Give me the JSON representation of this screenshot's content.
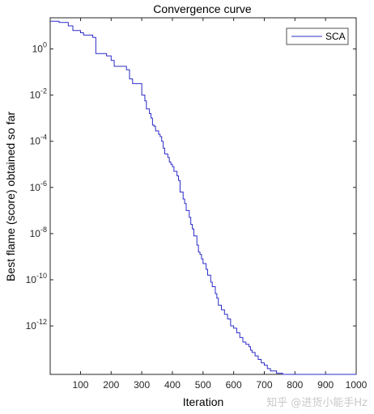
{
  "chart_data": {
    "type": "line",
    "title": "Convergence curve",
    "xlabel": "Iteration",
    "ylabel": "Best flame (score) obtained so far",
    "xlim": [
      1,
      1000
    ],
    "ylim_log10": [
      -14.1,
      1.35
    ],
    "yscale": "log",
    "xticks": [
      100,
      200,
      300,
      400,
      500,
      600,
      700,
      800,
      900,
      1000
    ],
    "yticks_exp": [
      0,
      -2,
      -4,
      -6,
      -8,
      -10,
      -12
    ],
    "legend": {
      "entries": [
        "SCA"
      ],
      "location": "top-right"
    },
    "grid": false,
    "series": [
      {
        "name": "SCA",
        "color": "#2b2bc8",
        "x": [
          1,
          30,
          60,
          75,
          100,
          110,
          140,
          150,
          185,
          200,
          210,
          250,
          260,
          270,
          300,
          310,
          315,
          325,
          330,
          335,
          340,
          345,
          355,
          360,
          365,
          370,
          375,
          385,
          390,
          395,
          400,
          405,
          415,
          420,
          425,
          435,
          440,
          445,
          455,
          460,
          465,
          470,
          480,
          485,
          490,
          495,
          500,
          510,
          515,
          525,
          530,
          540,
          545,
          550,
          560,
          570,
          580,
          590,
          600,
          610,
          620,
          630,
          640,
          650,
          655,
          660,
          670,
          680,
          690,
          700,
          710,
          720,
          740,
          760,
          1000
        ],
        "log10y": [
          1.2,
          1.15,
          1.0,
          0.8,
          0.7,
          0.6,
          0.5,
          -0.2,
          -0.3,
          -0.5,
          -0.75,
          -0.9,
          -1.3,
          -1.5,
          -2.0,
          -2.25,
          -2.6,
          -2.8,
          -3.0,
          -3.3,
          -3.35,
          -3.55,
          -3.7,
          -3.8,
          -4.0,
          -4.3,
          -4.55,
          -4.7,
          -4.9,
          -5.0,
          -5.1,
          -5.3,
          -5.5,
          -5.7,
          -6.2,
          -6.5,
          -6.7,
          -7.0,
          -7.3,
          -7.6,
          -7.8,
          -8.1,
          -8.5,
          -8.8,
          -8.9,
          -9.1,
          -9.3,
          -9.55,
          -9.8,
          -10.1,
          -10.3,
          -10.6,
          -10.8,
          -11.1,
          -11.3,
          -11.5,
          -11.7,
          -12.0,
          -12.1,
          -12.3,
          -12.5,
          -12.7,
          -12.8,
          -12.9,
          -13.05,
          -13.15,
          -13.3,
          -13.45,
          -13.6,
          -13.7,
          -13.85,
          -13.95,
          -14.05,
          -14.1,
          -14.1
        ]
      }
    ]
  },
  "watermark": "知乎 @进货小能手Hz"
}
